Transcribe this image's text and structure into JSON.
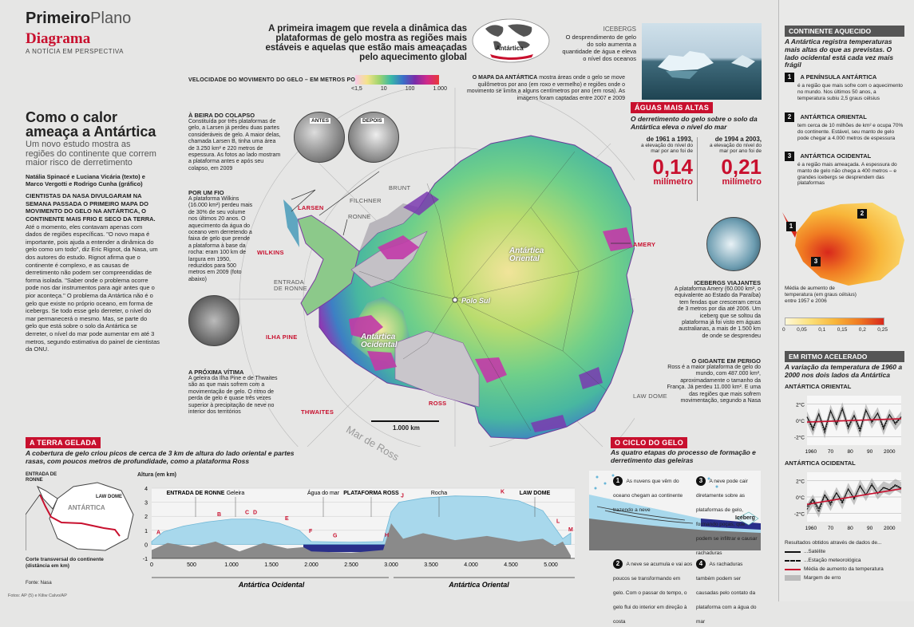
{
  "header": {
    "title_bold": "Primeiro",
    "title_light": "Plano",
    "section": "Diagrama",
    "tagline": "A NOTÍCIA EM PERSPECTIVA"
  },
  "lead": {
    "headline": "Como o calor ameaça a Antártica",
    "subtitle": "Um novo estudo mostra as regiões do continente que correm maior risco de derretimento",
    "credits": "Natália Spinacé e Luciana Vicária (texto) e Marco Vergotti e Rodrigo Cunha (gráfico)",
    "body_caps": "CIENTISTAS DA NASA DIVULGARAM NA SEMANA PASSADA O PRIMEIRO MAPA DO MOVIMENTO DO GELO NA ANTÁRTICA, O CONTINENTE MAIS FRIO E SECO DA TERRA.",
    "body": "Até o momento, eles contavam apenas com dados de regiões específicas. \"O novo mapa é importante, pois ajuda a entender a dinâmica do gelo como um todo\", diz Eric Rignot, da Nasa, um dos autores do estudo. Rignot afirma que o continente é complexo, e as causas de derretimento não podem ser compreendidas de forma isolada. \"Saber onde o problema ocorre pode nos dar instrumentos para agir antes que o pior aconteça.\" O problema da Antártica não é o gelo que existe no próprio oceano, em forma de icebergs. Se todo esse gelo derreter, o nível do mar permanecerá o mesmo. Mas, se parte do gelo que está sobre o solo da Antártica se derreter, o nível do mar pode aumentar em até 3 metros, segundo estimativa do painel de cientistas da ONU."
  },
  "top": {
    "intro": "A primeira imagem que revela a dinâmica das plataformas de gelo mostra as regiões mais estáveis e aquelas que estão mais ameaçadas pelo aquecimento global",
    "globe_label": "Antártica",
    "icebergs_title": "ICEBERGS",
    "icebergs_text": "O desprendimento de gelo do solo aumenta a quantidade de água e eleva o nível dos oceanos",
    "scale_title": "VELOCIDADE DO MOVIMENTO DO GELO – EM METROS POR ANO",
    "scale_ticks": [
      "<1,5",
      "10",
      "100",
      "1.000"
    ],
    "map_note_caps": "O MAPA DA ANTÁRTICA",
    "map_note": "mostra áreas onde o gelo se move quilômetros por ano (em roxo e vermelho) e regiões onde o movimento se limita a alguns centímetros por ano (em rosa). As imagens foram captadas entre 2007 e 2009"
  },
  "map": {
    "labels": {
      "larsen": "LARSEN",
      "brunt": "BRUNT",
      "filchner": "FILCHNER",
      "ronne": "RONNE",
      "entrada": "ENTRADA DE RONNE",
      "wilkins": "WILKINS",
      "ilha_pine": "ILHA PINE",
      "thwaites": "THWAITES",
      "ross": "ROSS",
      "amery": "AMERY",
      "law_dome": "LAW DOME",
      "oriental": "Antártica Oriental",
      "ocidental": "Antártica Ocidental",
      "polo": "Polo Sul",
      "mar_ross": "Mar de Ross",
      "scale": "1.000 km",
      "antes": "ANTES",
      "depois": "DEPOIS"
    }
  },
  "callouts": {
    "colapso_title": "À BEIRA DO COLAPSO",
    "colapso_text": "Constituída por três plataformas de gelo, a Larsen já perdeu duas partes consideráveis de gelo. A maior delas, chamada Larsen B, tinha uma área de 3.250 km² e 220 metros de espessura. As fotos ao lado mostram a plataforma antes e após seu colapso, em 2009",
    "fio_title": "POR UM FIO",
    "fio_text": "A plataforma Wilkins (16.000 km²) perdeu mais de 30% de seu volume nos últimos 20 anos. O aquecimento da água do oceano vem derretendo a faixa de gelo que prende a plataforma à base da rocha: eram 100 km de largura em 1950, reduzidos para 500 metros em 2009 (foto abaixo)",
    "vitima_title": "A PRÓXIMA VÍTIMA",
    "vitima_text": "A geleira da Ilha Pine e de Thwaites são as que mais sofrem com a movimentação de gelo. O ritmo de perda de gelo é quase três vezes superior à precipitação de neve no interior dos territórios",
    "viajantes_title": "ICEBERGS VIAJANTES",
    "viajantes_text": "A plataforma Amery (60.000 km², o equivalente ao Estado da Paraíba) tem fendas que cresceram cerca de 3 metros por dia até 2006. Um iceberg que se soltou da plataforma já foi visto em águas australianas, a mais de 1.500 km de onde se desprendeu",
    "gigante_title": "O GIGANTE EM PERIGO",
    "gigante_text": "Ross é a maior plataforma de gelo do mundo, com 487.000 km², aproximadamente o tamanho da França. Já perdeu 11.000 km². E uma das regiões que mais sofrem movimentação, segundo a Nasa"
  },
  "aguas": {
    "title": "ÁGUAS MAIS ALTAS",
    "text": "O derretimento do gelo sobre o solo da Antártica eleva o nível do mar",
    "p1_period": "de 1961 a 1993,",
    "p1_text": "a elevação do nível do mar por ano foi de",
    "p1_value": "0,14",
    "p2_period": "de 1994 a 2003,",
    "p2_text": "a elevação do nível do mar por ano foi de",
    "p2_value": "0,21",
    "unit": "milímetro"
  },
  "continente": {
    "title": "CONTINENTE AQUECIDO",
    "intro": "A Antártica registra temperaturas mais altas do que as previstas. O lado ocidental está cada vez mais frágil",
    "items": [
      {
        "n": "1",
        "title": "A PENÍNSULA ANTÁRTICA",
        "text": "é a região que mais sofre com o aquecimento no mundo. Nos últimos 50 anos, a temperatura subiu 2,5 graus célsius"
      },
      {
        "n": "2",
        "title": "ANTÁRTICA ORIENTAL",
        "text": "tem cerca de 10 milhões de km² e ocupa 70% do continente. Estável, seu manto de gelo pode chegar a 4.000 metros de espessura"
      },
      {
        "n": "3",
        "title": "ANTÁRTICA OCIDENTAL",
        "text": "é a região mais ameaçada. A espessura do manto de gelo não chega a 400 metros – e grandes icebergs se desprendem das plataformas"
      }
    ],
    "legend_text": "Média de aumento de temperatura (em graus célsius) entre 1957 e 2006",
    "legend_ticks": [
      "0",
      "0,05",
      "0,1",
      "0,15",
      "0,2",
      "0,25"
    ]
  },
  "ritmo": {
    "title": "EM RITMO ACELERADO",
    "intro": "A variação da temperatura de 1960 a 2000 nos dois lados da Antártica",
    "oriental": "ANTÁRTICA ORIENTAL",
    "ocidental": "ANTÁRTICA OCIDENTAL",
    "legend_title": "Resultados obtidos através de dados de...",
    "legend": [
      "...Satélite",
      "...Estação meteorológica",
      "Média de aumento da temperatura",
      "Margem de erro"
    ]
  },
  "terra": {
    "title": "A TERRA GELADA",
    "intro": "A cobertura de gelo criou picos de cerca de 3 km de altura do lado oriental e partes rasas, com poucos metros de profundidade, como a plataforma Ross",
    "mini_labels": {
      "entrada": "ENTRADA DE RONNE",
      "law": "LAW DOME",
      "antartica": "ANTÁRTICA"
    },
    "corte": "Corte transversal do continente (distância em km)",
    "fonte": "Fonte: Nasa",
    "fotos": "Fotos: AP (5) e Kiliw Calvo/AP"
  },
  "ciclo": {
    "title": "O CICLO DO GELO",
    "intro": "As quatro etapas do processo de formação e derretimento das geleiras",
    "steps": [
      {
        "n": "1",
        "text": "As nuvens que vêm do oceano chegam ao continente trazendo a neve"
      },
      {
        "n": "2",
        "text": "A neve se acumula e vai aos poucos se transformando em gelo. Com o passar do tempo, o gelo flui do interior em direção à costa"
      },
      {
        "n": "3",
        "text": "A neve pode cair diretamente sobre as plataformas de gelo, formando poças, que podem se infiltrar e causar rachaduras"
      },
      {
        "n": "4",
        "text": "As rachaduras também podem ser causadas pelo contato da plataforma com a água do mar"
      }
    ],
    "iceberg": "Iceberg"
  },
  "chart_data": [
    {
      "type": "area",
      "title": "Altura (em km)",
      "xlabel": "Corte transversal do continente (distância em km)",
      "ylabel": "Altura (em km)",
      "xlim": [
        0,
        5300
      ],
      "ylim": [
        -1,
        4
      ],
      "x_ticks": [
        "0",
        "500",
        "1.000",
        "1.500",
        "2.000",
        "2.500",
        "3.000",
        "3.500",
        "4.000",
        "4.500",
        "5.000"
      ],
      "y_ticks": [
        "4",
        "3",
        "2",
        "1",
        "0",
        "-1"
      ],
      "sections": [
        "Antártica Ocidental",
        "Antártica Oriental"
      ],
      "region_labels": [
        {
          "x": 550,
          "text": "ENTRADA DE RONNE"
        },
        {
          "x": 2150,
          "text": "Água do mar"
        },
        {
          "x": 2750,
          "text": "PLATAFORMA ROSS"
        },
        {
          "x": 1050,
          "text": "Geleira"
        },
        {
          "x": 3600,
          "text": "Rocha"
        },
        {
          "x": 4800,
          "text": "LAW DOME"
        }
      ],
      "points": [
        {
          "x": 40,
          "label": "A"
        },
        {
          "x": 800,
          "label": "B"
        },
        {
          "x": 1150,
          "label": "C"
        },
        {
          "x": 1250,
          "label": "D"
        },
        {
          "x": 1650,
          "label": "E"
        },
        {
          "x": 1950,
          "label": "F"
        },
        {
          "x": 2250,
          "label": "G"
        },
        {
          "x": 2900,
          "label": "H"
        },
        {
          "x": 3100,
          "label": "J"
        },
        {
          "x": 4350,
          "label": "K"
        },
        {
          "x": 5050,
          "label": "L"
        },
        {
          "x": 5200,
          "label": "M"
        }
      ],
      "series": [
        {
          "name": "Gelo",
          "x": [
            0,
            150,
            400,
            700,
            1000,
            1300,
            1600,
            1850,
            2000,
            2500,
            2900,
            3000,
            3100,
            3400,
            3800,
            4200,
            4600,
            4900,
            5050,
            5150,
            5250
          ],
          "values": [
            0.2,
            0.9,
            1.3,
            1.6,
            1.8,
            1.8,
            1.5,
            1.0,
            0.2,
            0.15,
            0.2,
            2.3,
            3.0,
            3.3,
            3.45,
            3.4,
            3.1,
            2.4,
            1.2,
            0.4,
            0.8
          ]
        },
        {
          "name": "Rocha",
          "x": [
            0,
            200,
            500,
            800,
            1100,
            1400,
            1700,
            1900,
            2000,
            2500,
            2900,
            3000,
            3150,
            3400,
            3800,
            4200,
            4600,
            4900,
            5050,
            5150,
            5250
          ],
          "values": [
            -0.4,
            0.1,
            -0.2,
            0.2,
            -0.5,
            0.1,
            -0.3,
            -0.2,
            -0.5,
            -0.6,
            -0.4,
            1.5,
            0.4,
            0.8,
            0.3,
            0.6,
            0.2,
            0.4,
            -0.1,
            0.2,
            -0.8
          ]
        }
      ]
    },
    {
      "type": "line",
      "title": "ANTÁRTICA ORIENTAL",
      "x_ticks": [
        "1960",
        "70",
        "80",
        "90",
        "2000"
      ],
      "y_ticks": [
        "2°C",
        "0°C",
        "-2°C"
      ],
      "ylim": [
        -3,
        3
      ],
      "series": [
        {
          "name": "Estação meteorológica",
          "x": [
            1958,
            1961,
            1964,
            1967,
            1970,
            1973,
            1976,
            1979,
            1982,
            1985,
            1988,
            1991,
            1994,
            1997,
            2000,
            2003,
            2006
          ],
          "values": [
            0.4,
            -1.2,
            0.8,
            -1.5,
            1.2,
            -0.6,
            1.5,
            -1.0,
            0.6,
            -1.4,
            1.3,
            -0.3,
            0.9,
            -1.1,
            0.7,
            -0.5,
            0.4
          ]
        },
        {
          "name": "Média de aumento da temperatura",
          "x": [
            1958,
            2006
          ],
          "values": [
            -0.2,
            0.2
          ]
        }
      ]
    },
    {
      "type": "line",
      "title": "ANTÁRTICA OCIDENTAL",
      "x_ticks": [
        "1960",
        "70",
        "80",
        "90",
        "2000"
      ],
      "y_ticks": [
        "2°C",
        "0°C",
        "-2°C"
      ],
      "ylim": [
        -3,
        3
      ],
      "series": [
        {
          "name": "Estação meteorológica",
          "x": [
            1958,
            1961,
            1964,
            1967,
            1970,
            1973,
            1976,
            1979,
            1982,
            1985,
            1988,
            1991,
            1994,
            1997,
            2000,
            2003,
            2006
          ],
          "values": [
            -1.5,
            -0.4,
            -1.8,
            0.2,
            -1.0,
            0.5,
            -0.8,
            1.0,
            -0.3,
            1.4,
            0.2,
            1.6,
            0.4,
            1.2,
            0.9,
            1.5,
            1.1
          ]
        },
        {
          "name": "Média de aumento da temperatura",
          "x": [
            1958,
            2006
          ],
          "values": [
            -0.9,
            1.0
          ]
        }
      ]
    }
  ]
}
